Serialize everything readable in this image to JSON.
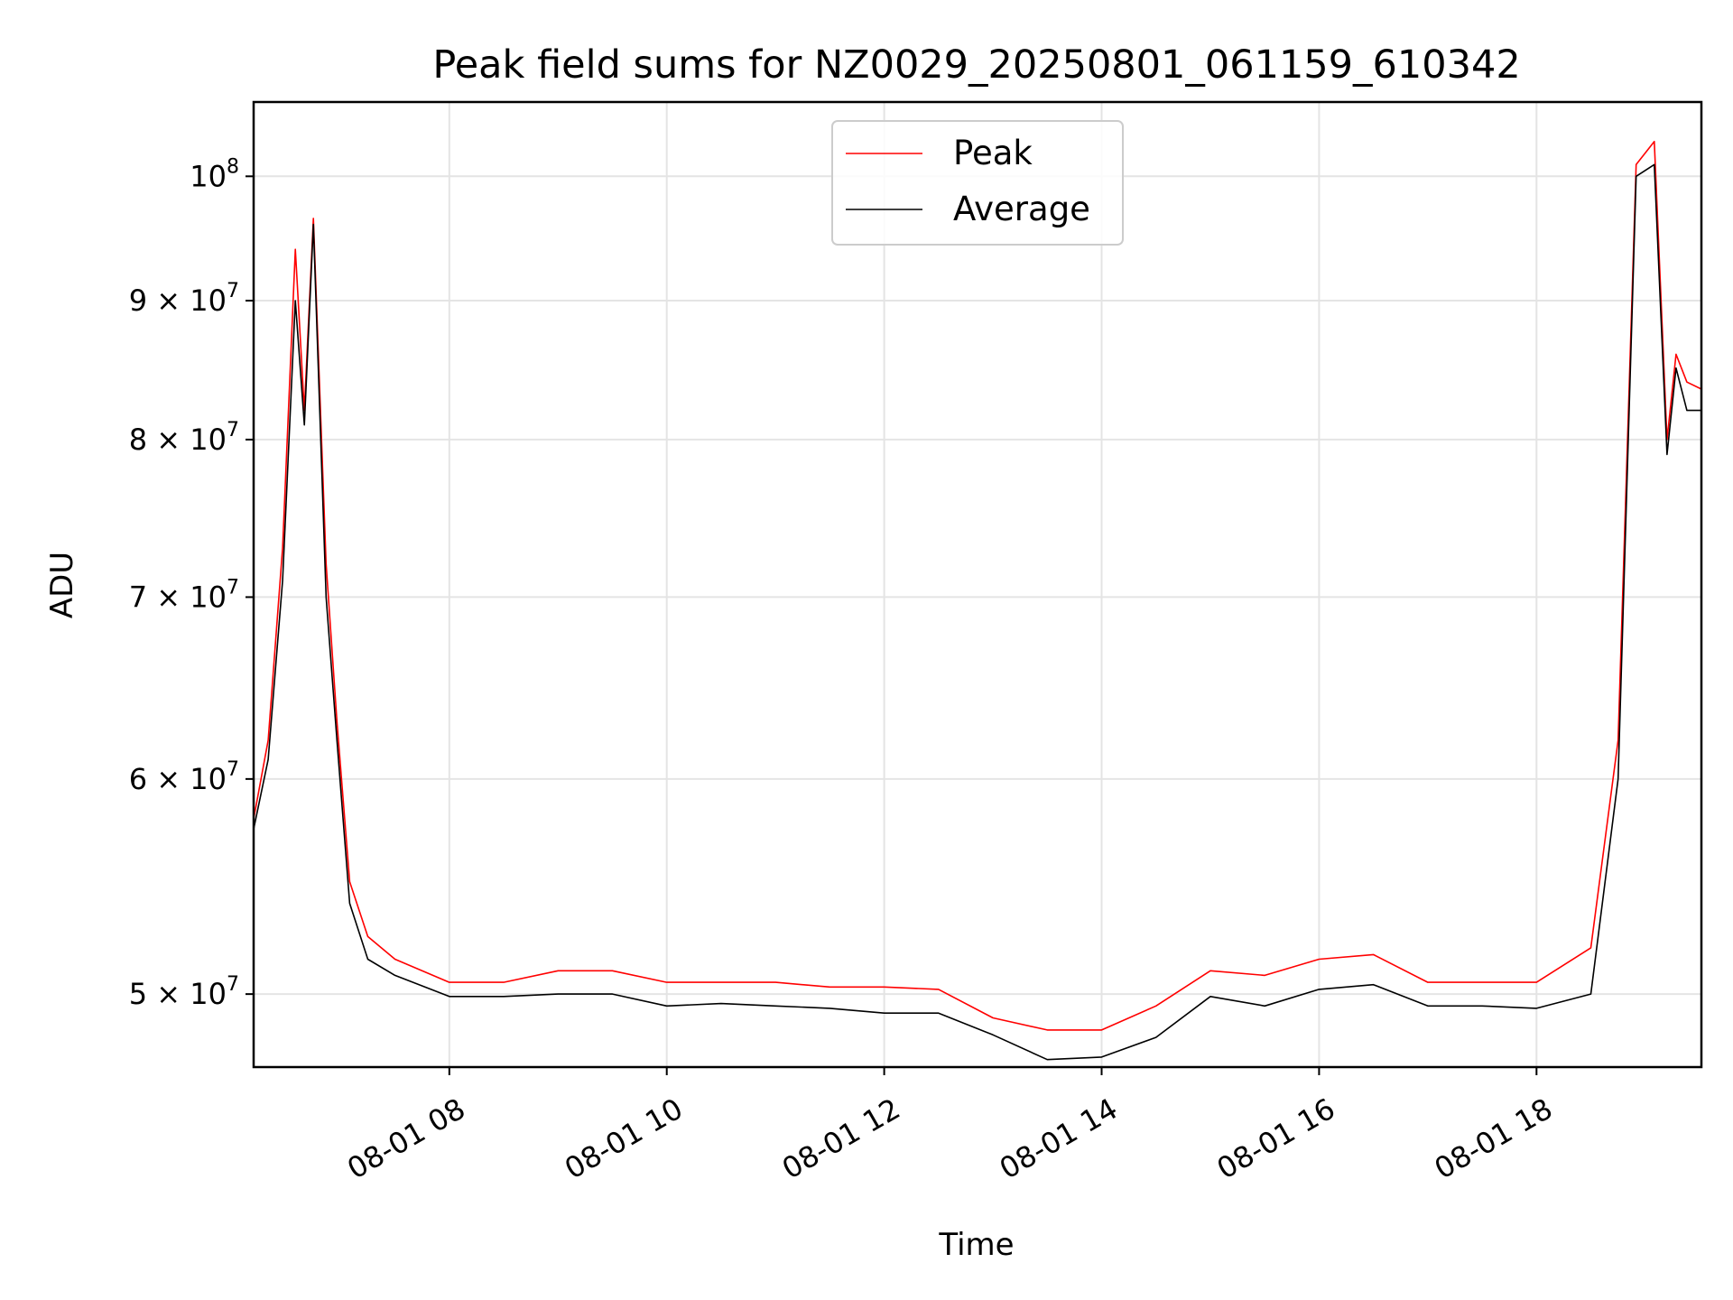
{
  "chart_data": {
    "type": "line",
    "title": "Peak field sums for NZ0029_20250801_061159_610342",
    "xlabel": "Time",
    "ylabel": "ADU",
    "y_scale": "log",
    "xlim": [
      "2025-08-01 06:12",
      "2025-08-01 19:31"
    ],
    "ylim": [
      47000000,
      106500000
    ],
    "x_ticks": [
      {
        "value": "2025-08-01 08:00",
        "label": "08-01 08"
      },
      {
        "value": "2025-08-01 10:00",
        "label": "08-01 10"
      },
      {
        "value": "2025-08-01 12:00",
        "label": "08-01 12"
      },
      {
        "value": "2025-08-01 14:00",
        "label": "08-01 14"
      },
      {
        "value": "2025-08-01 16:00",
        "label": "08-01 16"
      },
      {
        "value": "2025-08-01 18:00",
        "label": "08-01 18"
      }
    ],
    "y_ticks": [
      {
        "value": 50000000,
        "base": "5 × 10",
        "exp": "7"
      },
      {
        "value": 60000000,
        "base": "6 × 10",
        "exp": "7"
      },
      {
        "value": 70000000,
        "base": "7 × 10",
        "exp": "7"
      },
      {
        "value": 80000000,
        "base": "8 × 10",
        "exp": "7"
      },
      {
        "value": 90000000,
        "base": "9 × 10",
        "exp": "7"
      },
      {
        "value": 100000000,
        "base": "10",
        "exp": "8"
      }
    ],
    "grid": true,
    "legend_position": "upper-center",
    "series": [
      {
        "name": "Peak",
        "color": "#ff0000",
        "x": [
          "2025-08-01 06:12",
          "2025-08-01 06:20",
          "2025-08-01 06:28",
          "2025-08-01 06:35",
          "2025-08-01 06:40",
          "2025-08-01 06:45",
          "2025-08-01 06:52",
          "2025-08-01 06:58",
          "2025-08-01 07:05",
          "2025-08-01 07:15",
          "2025-08-01 07:30",
          "2025-08-01 08:00",
          "2025-08-01 08:30",
          "2025-08-01 09:00",
          "2025-08-01 09:30",
          "2025-08-01 10:00",
          "2025-08-01 10:30",
          "2025-08-01 11:00",
          "2025-08-01 11:30",
          "2025-08-01 12:00",
          "2025-08-01 12:30",
          "2025-08-01 13:00",
          "2025-08-01 13:30",
          "2025-08-01 14:00",
          "2025-08-01 14:30",
          "2025-08-01 15:00",
          "2025-08-01 15:30",
          "2025-08-01 16:00",
          "2025-08-01 16:30",
          "2025-08-01 17:00",
          "2025-08-01 17:30",
          "2025-08-01 18:00",
          "2025-08-01 18:30",
          "2025-08-01 18:45",
          "2025-08-01 18:55",
          "2025-08-01 19:05",
          "2025-08-01 19:12",
          "2025-08-01 19:17",
          "2025-08-01 19:23",
          "2025-08-01 19:31"
        ],
        "y": [
          58000000,
          62000000,
          73000000,
          94000000,
          82000000,
          96500000,
          72000000,
          63000000,
          55000000,
          52500000,
          51500000,
          50500000,
          50500000,
          51000000,
          51000000,
          50500000,
          50500000,
          50500000,
          50300000,
          50300000,
          50200000,
          49000000,
          48500000,
          48500000,
          49500000,
          51000000,
          50800000,
          51500000,
          51700000,
          50500000,
          50500000,
          50500000,
          52000000,
          62000000,
          101000000,
          103000000,
          80000000,
          86000000,
          84000000,
          83500000
        ]
      },
      {
        "name": "Average",
        "color": "#000000",
        "x": [
          "2025-08-01 06:12",
          "2025-08-01 06:20",
          "2025-08-01 06:28",
          "2025-08-01 06:35",
          "2025-08-01 06:40",
          "2025-08-01 06:45",
          "2025-08-01 06:52",
          "2025-08-01 06:58",
          "2025-08-01 07:05",
          "2025-08-01 07:15",
          "2025-08-01 07:30",
          "2025-08-01 08:00",
          "2025-08-01 08:30",
          "2025-08-01 09:00",
          "2025-08-01 09:30",
          "2025-08-01 10:00",
          "2025-08-01 10:30",
          "2025-08-01 11:00",
          "2025-08-01 11:30",
          "2025-08-01 12:00",
          "2025-08-01 12:30",
          "2025-08-01 13:00",
          "2025-08-01 13:30",
          "2025-08-01 14:00",
          "2025-08-01 14:30",
          "2025-08-01 15:00",
          "2025-08-01 15:30",
          "2025-08-01 16:00",
          "2025-08-01 16:30",
          "2025-08-01 17:00",
          "2025-08-01 17:30",
          "2025-08-01 18:00",
          "2025-08-01 18:30",
          "2025-08-01 18:45",
          "2025-08-01 18:55",
          "2025-08-01 19:05",
          "2025-08-01 19:12",
          "2025-08-01 19:17",
          "2025-08-01 19:23",
          "2025-08-01 19:31"
        ],
        "y": [
          57500000,
          61000000,
          71000000,
          90000000,
          81000000,
          96000000,
          70000000,
          62000000,
          54000000,
          51500000,
          50800000,
          49900000,
          49900000,
          50000000,
          50000000,
          49500000,
          49600000,
          49500000,
          49400000,
          49200000,
          49200000,
          48300000,
          47300000,
          47400000,
          48200000,
          49900000,
          49500000,
          50200000,
          50400000,
          49500000,
          49500000,
          49400000,
          50000000,
          60000000,
          100000000,
          101000000,
          79000000,
          85000000,
          82000000,
          82000000
        ]
      }
    ]
  }
}
